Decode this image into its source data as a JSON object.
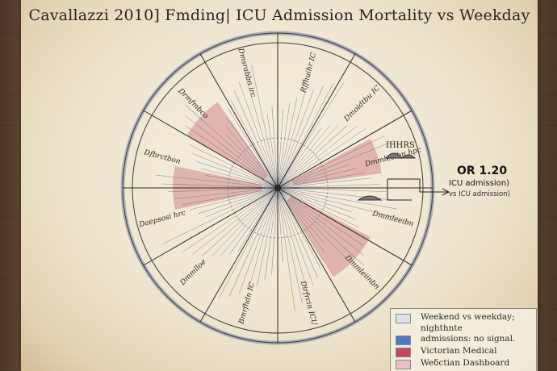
{
  "title": "Cavallazzi 2010] Fmding| ICU Admission Mortality vs Weekday",
  "chart_data": {
    "type": "radial",
    "title": "Cavallazzi 2010] Fmding| ICU Admission Mortality vs Weekday",
    "segments": [
      "Rffhuihr IC",
      "Dmoidtbu IC",
      "Dmmleeibn hpc",
      "Dmmleeibn",
      "Dmmleiinbn",
      "Dirfrcin ICU",
      "Bmrfhdn IC",
      "Dmmlloe",
      "Daepsosi hrc",
      "Dfbrctbon",
      "Drmfmbco",
      "Dmsrabbn irc"
    ],
    "highlights": [
      {
        "series": "red",
        "from_deg": 300,
        "to_deg": 325
      },
      {
        "series": "red",
        "from_deg": 62,
        "to_deg": 82
      },
      {
        "series": "red",
        "from_deg": 118,
        "to_deg": 148
      },
      {
        "series": "red",
        "from_deg": 258,
        "to_deg": 282
      }
    ],
    "annotation": {
      "value": "OR 1.20",
      "line1": "ICU admission)",
      "line2": "vs ICU admission)",
      "small_label": "IHHRS"
    }
  },
  "legend": [
    {
      "label": "Weekend vs weekday;",
      "color": "#dbe2ee"
    },
    {
      "label": "nighthnte",
      "color": null
    },
    {
      "label": "admissions: no signal.",
      "color": "#4f79c0"
    },
    {
      "label": "Victorian Medical",
      "color": "#c24a5a"
    },
    {
      "label": "Weδctian Dashboard",
      "color": "#e8bfc4"
    }
  ],
  "colors": {
    "ink": "#2a2520",
    "ring": "#7d8ba7",
    "red_wash": "#c0505e",
    "blue_ray": "#5b7fba"
  }
}
